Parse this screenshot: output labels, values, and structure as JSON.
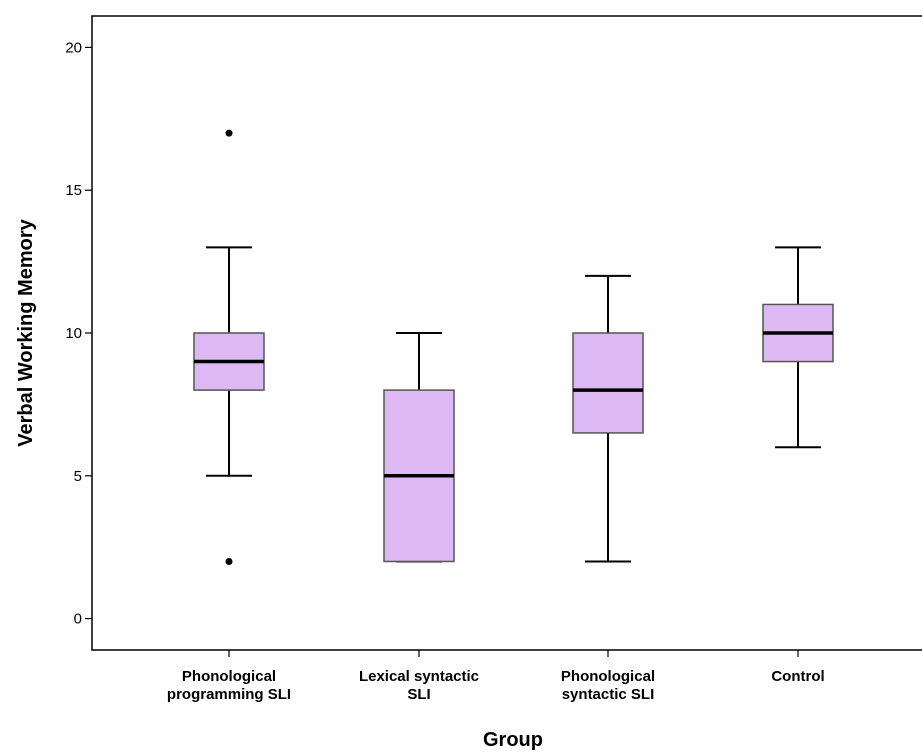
{
  "chart_data": {
    "type": "boxplot",
    "xlabel": "Group",
    "ylabel": "Verbal Working Memory",
    "ylim": [
      -1.1,
      21.1
    ],
    "yticks": [
      0,
      5,
      10,
      15,
      20
    ],
    "grid": false,
    "categories": [
      [
        "Phonological",
        "programming SLI"
      ],
      [
        "Lexical syntactic",
        "SLI"
      ],
      [
        "Phonological",
        "syntactic SLI"
      ],
      [
        "Control"
      ]
    ],
    "boxes": [
      {
        "whisker_low": 5,
        "q1": 8,
        "median": 9,
        "q3": 10,
        "whisker_high": 13,
        "outliers": [
          2,
          17
        ]
      },
      {
        "whisker_low": 2,
        "q1": 2,
        "median": 5,
        "q3": 8,
        "whisker_high": 10,
        "outliers": []
      },
      {
        "whisker_low": 2,
        "q1": 6.5,
        "median": 8,
        "q3": 10,
        "whisker_high": 12,
        "outliers": []
      },
      {
        "whisker_low": 6,
        "q1": 9,
        "median": 10,
        "q3": 11,
        "whisker_high": 13,
        "outliers": []
      }
    ],
    "colors": {
      "box_fill": "#DDB9F3",
      "box_stroke": "#555555",
      "median": "#000000",
      "whisker": "#000000",
      "outlier": "#000000"
    }
  }
}
